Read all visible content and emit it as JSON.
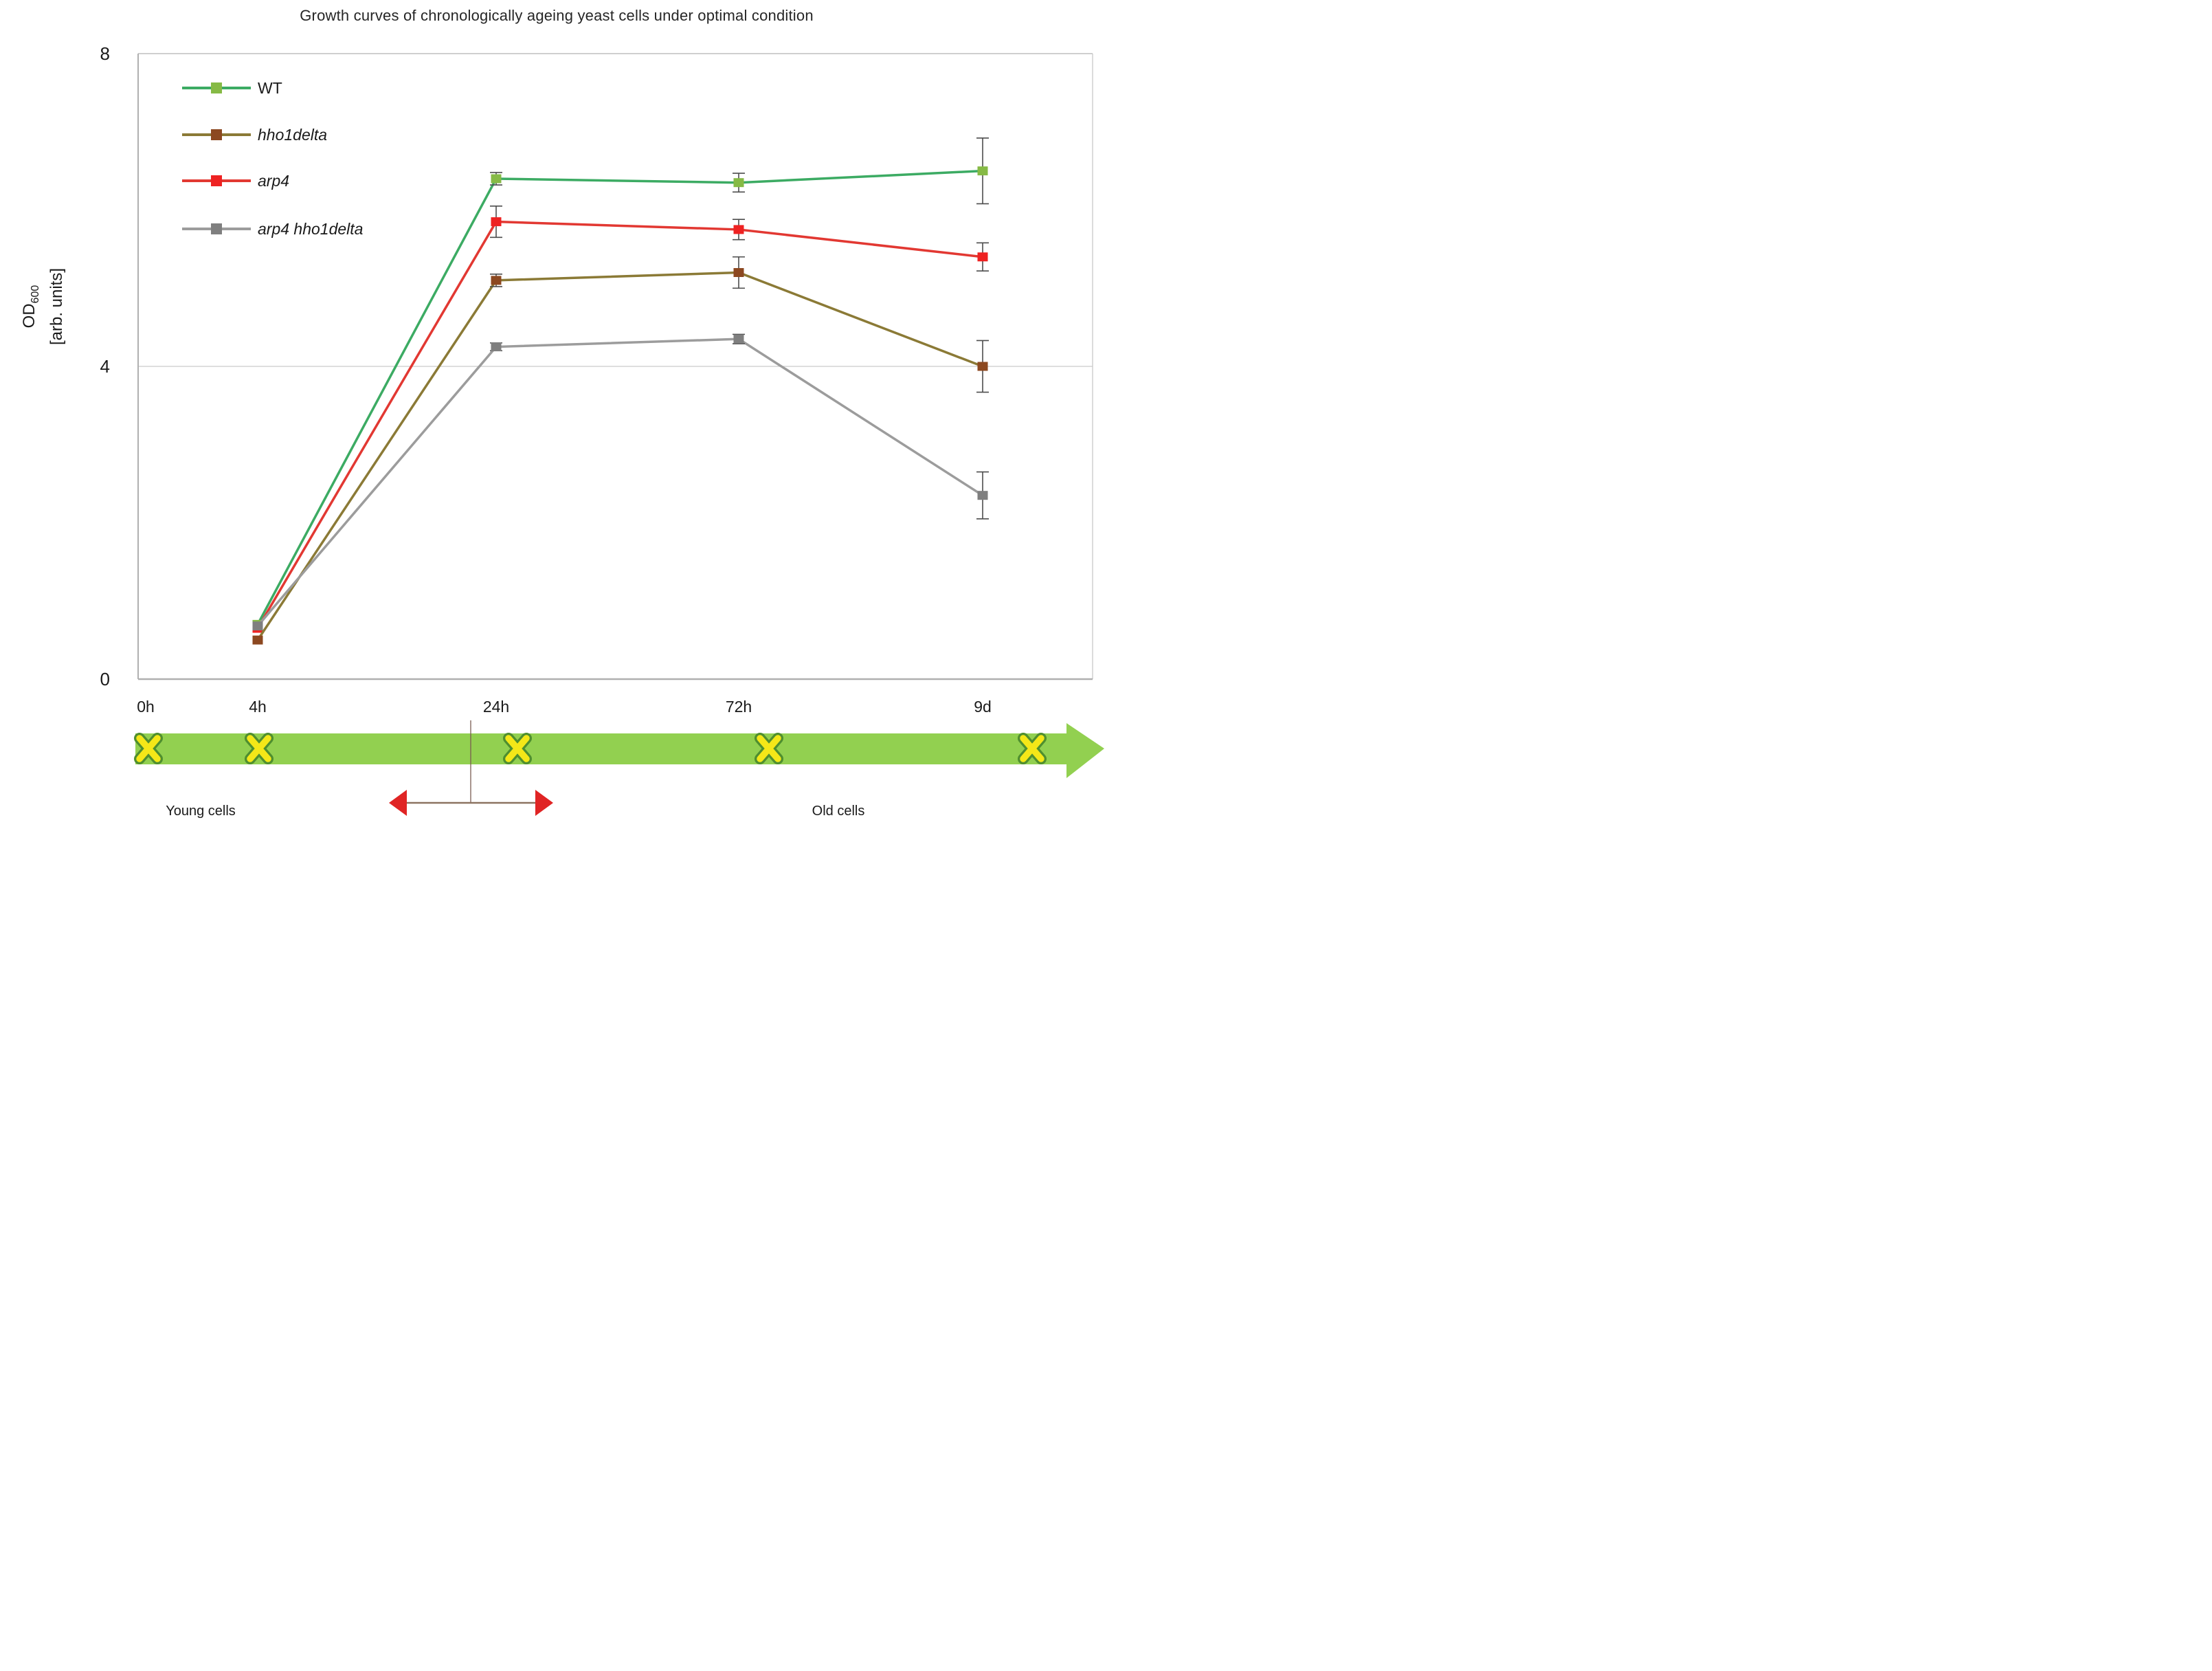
{
  "chart_data": {
    "type": "line",
    "title": "Growth curves of chronologically ageing yeast cells under optimal condition",
    "ylabel_main": "OD",
    "ylabel_sub": "600",
    "ylabel_units": "[arb. units]",
    "ylim": [
      0,
      8
    ],
    "ytick_labels": [
      "8",
      "4",
      "0"
    ],
    "ytick_values": [
      8,
      4,
      0
    ],
    "gridline_at": 4,
    "grid": "single horizontal gridline at y=4",
    "legend_position": "top-left inside plot",
    "x_categories": [
      "0h",
      "4h",
      "24h",
      "72h",
      "9d"
    ],
    "series": [
      {
        "name": "WT",
        "italic": false,
        "line_color": "#3cab63",
        "marker_color": "#86ba45",
        "values": [
          null,
          0.7,
          6.4,
          6.35,
          6.5
        ],
        "errors": [
          null,
          0,
          0.08,
          0.12,
          0.42
        ]
      },
      {
        "name": "hho1delta",
        "italic": true,
        "line_color": "#8b7a36",
        "marker_color": "#8c4820",
        "values": [
          null,
          0.5,
          5.1,
          5.2,
          4.0
        ],
        "errors": [
          null,
          0,
          0.08,
          0.2,
          0.33
        ]
      },
      {
        "name": "arp4",
        "italic": true,
        "line_color": "#e23832",
        "marker_color": "#ee2222",
        "values": [
          null,
          0.65,
          5.85,
          5.75,
          5.4
        ],
        "errors": [
          null,
          0,
          0.2,
          0.13,
          0.18
        ]
      },
      {
        "name": "arp4 hho1delta",
        "italic": true,
        "line_color": "#9c9c9c",
        "marker_color": "#7f7f7f",
        "values": [
          null,
          0.68,
          4.25,
          4.35,
          2.35
        ],
        "errors": [
          null,
          0,
          0.05,
          0.06,
          0.3
        ]
      }
    ],
    "timeline": {
      "band_color": "#92d050",
      "mark_glyph": "x",
      "mark_fill": "#f4e718",
      "mark_outline": "#4f8f2f",
      "marks_count": 5,
      "young_label": "Young cells",
      "old_label": "Old cells",
      "arrow_color": "#e02424",
      "arrow_shaft_color": "#8c7360",
      "guide_line_color": "#7a5c50"
    }
  }
}
